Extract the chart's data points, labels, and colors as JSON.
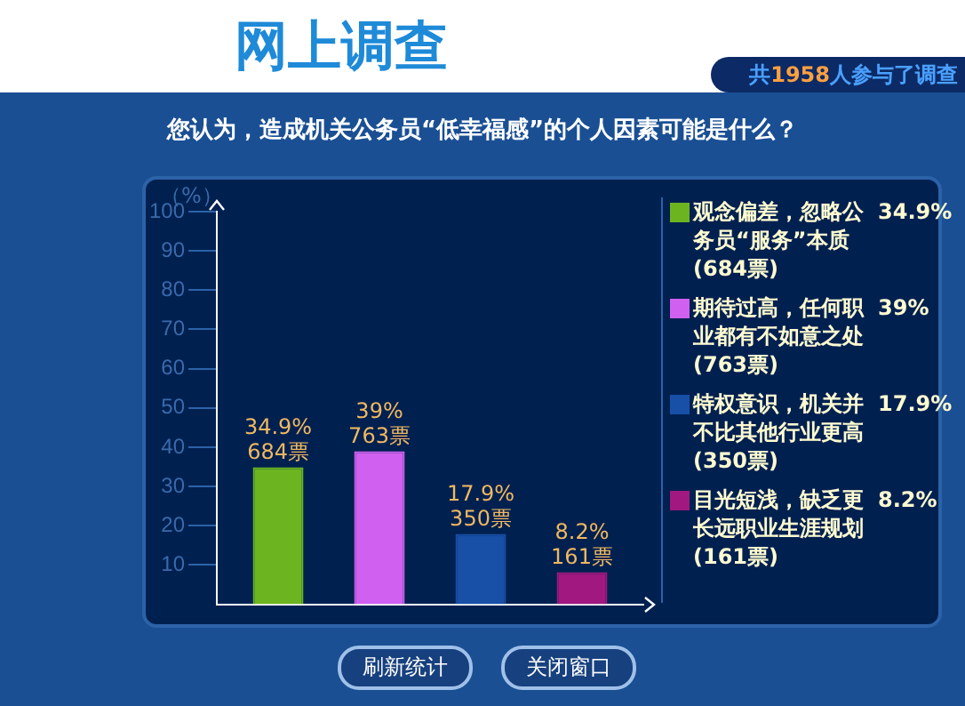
{
  "chart_data": {
    "type": "bar",
    "title": "网上调查",
    "subtitle": "您认为，造成机关公务员“低幸福感”的个人因素可能是什么？",
    "ylabel": "（%）",
    "categories": [
      null
    ],
    "series": [
      {
        "name": "观念偏差，忽略公务员“服务”本质 (684票)",
        "color": "#6cb520",
        "values": [
          34.9
        ],
        "value_labels": [
          "34.9%\n684票"
        ]
      },
      {
        "name": "期待过高，任何职业都有不如意之处 (763票)",
        "color": "#d060f0",
        "values": [
          39
        ],
        "value_labels": [
          "39%\n763票"
        ]
      },
      {
        "name": "特权意识，机关并不比其他行业更高 (350票)",
        "color": "#1850a8",
        "values": [
          17.9
        ],
        "value_labels": [
          "17.9%\n350票"
        ]
      },
      {
        "name": "目光短浅，缺乏更长远职业生涯规划 (161票)",
        "color": "#a01880",
        "values": [
          8.2
        ],
        "value_labels": [
          "8.2%\n161票"
        ]
      }
    ],
    "ylim": [
      0,
      100
    ],
    "yticks": [
      10,
      20,
      30,
      40,
      50,
      60,
      70,
      80,
      90,
      100
    ],
    "tick_labels": "y",
    "legend": "right",
    "grid": false,
    "annotations": [
      "共1958人参与了调查",
      "34.9%",
      "39%",
      "17.9%",
      "8.2%",
      "刷新统计",
      "关闭窗口"
    ]
  }
}
